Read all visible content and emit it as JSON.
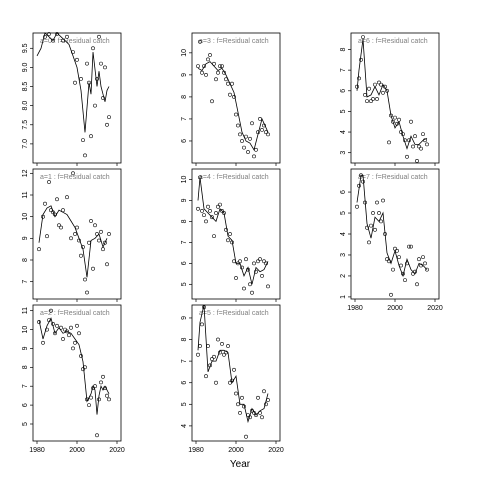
{
  "figure": {
    "xlabel": "Year"
  },
  "chart_data": {
    "type": "scatter",
    "xlim": [
      1978,
      2022
    ],
    "x_ticks": [
      1980,
      2000,
      2020
    ],
    "panels": [
      {
        "title": "a=0 : f=Residual catch",
        "ylim": [
          6.5,
          9.9
        ],
        "y_ticks": [
          7.0,
          7.5,
          8.0,
          8.5,
          9.0,
          9.5
        ],
        "y_tick_labels": [
          "7.0",
          "7.5",
          "8.0",
          "8.5",
          "9.0",
          "9.5"
        ],
        "points_x": [
          1984,
          1986,
          1988,
          1990,
          1993,
          1995,
          1998,
          1999,
          2000,
          2002,
          2003,
          2004,
          2005,
          2006,
          2007,
          2008,
          2009,
          2010,
          2011,
          2012,
          2013,
          2014,
          2015,
          2016
        ],
        "points_y": [
          9.8,
          9.9,
          9.7,
          9.95,
          9.7,
          9.8,
          9.4,
          8.6,
          9.2,
          8.7,
          7.1,
          6.7,
          9.1,
          8.6,
          7.2,
          9.5,
          8.0,
          8.7,
          9.8,
          9.1,
          8.2,
          9.0,
          7.5,
          7.7
        ],
        "line_x": [
          1980,
          1982,
          1984,
          1986,
          1988,
          1990,
          1992,
          1994,
          1996,
          1998,
          2000,
          2002,
          2004,
          2006,
          2007,
          2008,
          2010,
          2011,
          2012,
          2013,
          2014,
          2015,
          2016
        ],
        "line_y": [
          9.3,
          9.5,
          9.9,
          9.8,
          9.7,
          9.9,
          9.8,
          9.7,
          9.6,
          9.3,
          9.0,
          8.4,
          7.3,
          8.6,
          8.3,
          9.4,
          8.5,
          8.9,
          8.5,
          8.3,
          8.1,
          8.4,
          8.5
        ]
      },
      {
        "title": "a=1 : f=Residual catch",
        "ylim": [
          6.2,
          12.2
        ],
        "y_ticks": [
          7,
          8,
          9,
          10,
          11,
          12
        ],
        "y_tick_labels": [
          "7",
          "8",
          "9",
          "10",
          "11",
          "12"
        ],
        "points_x": [
          1981,
          1983,
          1984,
          1985,
          1986,
          1987,
          1988,
          1989,
          1990,
          1991,
          1992,
          1993,
          1995,
          1997,
          1998,
          1999,
          2000,
          2001,
          2002,
          2003,
          2004,
          2005,
          2006,
          2007,
          2008,
          2009,
          2010,
          2011,
          2012,
          2013,
          2014,
          2015,
          2016
        ],
        "points_y": [
          8.5,
          10.0,
          10.6,
          9.1,
          11.6,
          10.3,
          10.2,
          10.1,
          10.8,
          9.6,
          9.5,
          10.3,
          10.9,
          9.0,
          12.0,
          9.2,
          9.5,
          8.9,
          8.2,
          8.6,
          7.1,
          6.5,
          8.8,
          9.8,
          7.6,
          9.6,
          9.2,
          8.9,
          9.3,
          8.5,
          8.8,
          7.8,
          9.2
        ],
        "line_x": [
          1981,
          1983,
          1985,
          1987,
          1989,
          1991,
          1993,
          1995,
          1997,
          1999,
          2001,
          2003,
          2005,
          2007,
          2009,
          2011,
          2013,
          2015
        ],
        "line_y": [
          8.8,
          10.1,
          10.4,
          10.5,
          10.0,
          10.3,
          10.2,
          10.1,
          9.8,
          9.5,
          9.0,
          8.5,
          7.2,
          8.9,
          9.0,
          9.2,
          8.6,
          9.0
        ]
      },
      {
        "title": "a=2 : f=Residual catch",
        "ylim": [
          4.1,
          11.3
        ],
        "y_ticks": [
          5,
          6,
          7,
          8,
          9,
          10,
          11
        ],
        "y_tick_labels": [
          "5",
          "6",
          "7",
          "8",
          "9",
          "10",
          "11"
        ],
        "points_x": [
          1981,
          1983,
          1985,
          1986,
          1987,
          1988,
          1989,
          1990,
          1992,
          1993,
          1994,
          1995,
          1996,
          1997,
          1998,
          1999,
          2000,
          2001,
          2002,
          2003,
          2004,
          2005,
          2006,
          2007,
          2008,
          2009,
          2010,
          2011,
          2012,
          2013,
          2014,
          2015,
          2016
        ],
        "points_y": [
          10.4,
          9.3,
          10.0,
          10.5,
          11.0,
          10.3,
          9.8,
          10.2,
          10.1,
          9.5,
          10.0,
          9.9,
          9.7,
          10.1,
          9.0,
          9.3,
          10.2,
          9.8,
          8.6,
          7.9,
          8.0,
          6.3,
          6.0,
          6.4,
          6.9,
          7.0,
          4.4,
          6.3,
          7.2,
          7.5,
          6.9,
          6.5,
          6.3
        ],
        "line_x": [
          1981,
          1983,
          1985,
          1987,
          1989,
          1991,
          1993,
          1995,
          1997,
          1999,
          2001,
          2003,
          2005,
          2007,
          2008,
          2009,
          2010,
          2011,
          2012,
          2013,
          2014,
          2016
        ],
        "line_y": [
          10.5,
          9.5,
          10.2,
          10.6,
          9.8,
          10.1,
          9.8,
          9.9,
          9.8,
          9.5,
          9.2,
          8.3,
          6.2,
          6.6,
          7.0,
          6.8,
          5.5,
          6.5,
          7.0,
          6.8,
          7.0,
          6.6
        ]
      },
      {
        "title": "a=3 : f=Residual catch",
        "ylim": [
          5.0,
          10.9
        ],
        "y_ticks": [
          6,
          7,
          8,
          9,
          10
        ],
        "y_tick_labels": [
          "6",
          "7",
          "8",
          "9",
          "10"
        ],
        "points_x": [
          1981,
          1982,
          1983,
          1984,
          1985,
          1986,
          1987,
          1988,
          1989,
          1990,
          1991,
          1992,
          1993,
          1994,
          1995,
          1996,
          1997,
          1998,
          1999,
          2000,
          2001,
          2002,
          2003,
          2004,
          2005,
          2006,
          2007,
          2008,
          2009,
          2010,
          2011,
          2012,
          2013,
          2014,
          2015,
          2016
        ],
        "points_y": [
          9.4,
          10.5,
          9.1,
          9.4,
          9.0,
          9.7,
          9.9,
          7.8,
          9.5,
          8.8,
          9.1,
          9.4,
          9.4,
          9.1,
          8.8,
          8.6,
          8.1,
          8.6,
          8.0,
          7.2,
          6.7,
          6.3,
          6.0,
          5.7,
          6.2,
          5.5,
          6.1,
          6.8,
          5.3,
          5.6,
          6.4,
          7.0,
          6.5,
          6.7,
          6.4,
          6.3
        ],
        "line_x": [
          1981,
          1983,
          1985,
          1987,
          1989,
          1991,
          1993,
          1995,
          1997,
          1999,
          2001,
          2003,
          2005,
          2007,
          2009,
          2011,
          2013,
          2016
        ],
        "line_y": [
          9.3,
          9.2,
          9.5,
          9.6,
          9.4,
          9.2,
          9.3,
          9.0,
          8.6,
          8.2,
          7.3,
          6.4,
          6.0,
          5.9,
          5.6,
          6.3,
          7.0,
          6.4
        ]
      },
      {
        "title": "a=4 : f=Residual catch",
        "ylim": [
          4.3,
          10.5
        ],
        "y_ticks": [
          5,
          6,
          7,
          8,
          9,
          10
        ],
        "y_tick_labels": [
          "5",
          "6",
          "7",
          "8",
          "9",
          "10"
        ],
        "points_x": [
          1981,
          1982,
          1983,
          1984,
          1985,
          1986,
          1987,
          1988,
          1989,
          1990,
          1991,
          1992,
          1993,
          1994,
          1995,
          1996,
          1997,
          1998,
          1999,
          2000,
          2001,
          2002,
          2003,
          2004,
          2005,
          2006,
          2007,
          2008,
          2009,
          2010,
          2011,
          2012,
          2013,
          2014,
          2015,
          2016
        ],
        "points_y": [
          8.6,
          10.1,
          8.5,
          8.3,
          8.0,
          8.7,
          8.5,
          8.2,
          7.3,
          8.4,
          8.7,
          8.8,
          8.5,
          8.4,
          7.6,
          7.1,
          7.4,
          7.0,
          6.1,
          5.3,
          6.0,
          6.1,
          5.8,
          4.8,
          6.2,
          5.7,
          5.0,
          4.6,
          6.0,
          5.6,
          6.1,
          6.2,
          5.4,
          6.1,
          6.0,
          4.9
        ],
        "line_x": [
          1981,
          1982,
          1984,
          1986,
          1988,
          1990,
          1992,
          1994,
          1996,
          1998,
          2000,
          2002,
          2004,
          2006,
          2008,
          2010,
          2012,
          2014,
          2016
        ],
        "line_y": [
          9.0,
          10.1,
          8.6,
          8.4,
          8.2,
          8.0,
          8.6,
          8.4,
          7.3,
          7.1,
          6.0,
          6.0,
          5.4,
          5.8,
          5.0,
          5.8,
          5.6,
          5.7,
          6.1
        ]
      },
      {
        "title": "a=5 : f=Residual catch",
        "ylim": [
          3.3,
          9.6
        ],
        "y_ticks": [
          4,
          5,
          6,
          7,
          8,
          9
        ],
        "y_tick_labels": [
          "4",
          "5",
          "6",
          "7",
          "8",
          "9"
        ],
        "points_x": [
          1981,
          1982,
          1983,
          1984,
          1985,
          1986,
          1987,
          1988,
          1989,
          1990,
          1991,
          1992,
          1993,
          1994,
          1995,
          1996,
          1997,
          1998,
          1999,
          2000,
          2001,
          2002,
          2003,
          2004,
          2005,
          2006,
          2007,
          2008,
          2009,
          2010,
          2011,
          2012,
          2013,
          2014,
          2015,
          2016
        ],
        "points_y": [
          7.3,
          7.7,
          8.7,
          9.5,
          6.3,
          7.7,
          6.8,
          7.1,
          7.2,
          6.0,
          8.0,
          7.4,
          7.8,
          7.3,
          7.4,
          7.7,
          6.0,
          6.1,
          6.6,
          5.5,
          5.0,
          4.6,
          5.3,
          4.9,
          3.5,
          4.5,
          4.4,
          4.7,
          4.6,
          4.5,
          5.3,
          4.6,
          4.4,
          5.6,
          5.0,
          5.2
        ],
        "line_x": [
          1981,
          1982,
          1984,
          1986,
          1988,
          1990,
          1992,
          1994,
          1996,
          1998,
          2000,
          2002,
          2004,
          2006,
          2008,
          2010,
          2012,
          2014,
          2016
        ],
        "line_y": [
          7.5,
          8.8,
          9.6,
          6.5,
          7.0,
          7.0,
          7.5,
          7.5,
          7.4,
          6.0,
          6.3,
          5.0,
          5.0,
          4.2,
          4.8,
          4.5,
          4.7,
          4.8,
          5.5
        ]
      },
      {
        "title": "a=6 : f=Residual catch",
        "ylim": [
          2.5,
          8.8
        ],
        "y_ticks": [
          3,
          4,
          5,
          6,
          7,
          8
        ],
        "y_tick_labels": [
          "3",
          "4",
          "5",
          "6",
          "7",
          "8"
        ],
        "points_x": [
          1981,
          1982,
          1983,
          1984,
          1985,
          1986,
          1987,
          1988,
          1989,
          1990,
          1991,
          1992,
          1993,
          1994,
          1995,
          1996,
          1997,
          1998,
          1999,
          2000,
          2001,
          2002,
          2003,
          2004,
          2005,
          2006,
          2007,
          2008,
          2009,
          2010,
          2011,
          2012,
          2013,
          2014,
          2015,
          2016
        ],
        "points_y": [
          6.2,
          6.6,
          7.5,
          8.6,
          5.8,
          5.5,
          6.1,
          5.5,
          5.6,
          6.3,
          5.6,
          6.4,
          6.3,
          5.9,
          6.2,
          6.0,
          3.5,
          4.8,
          4.5,
          4.7,
          4.4,
          4.6,
          4.0,
          3.9,
          3.6,
          2.8,
          3.6,
          4.5,
          3.3,
          3.8,
          2.6,
          3.3,
          3.2,
          3.9,
          3.6,
          3.4
        ],
        "line_x": [
          1981,
          1982,
          1984,
          1986,
          1988,
          1990,
          1992,
          1994,
          1996,
          1998,
          2000,
          2002,
          2004,
          2006,
          2008,
          2010,
          2012,
          2014,
          2016
        ],
        "line_y": [
          6.0,
          7.0,
          8.5,
          5.7,
          5.8,
          6.2,
          5.8,
          6.3,
          6.0,
          4.8,
          4.2,
          4.5,
          3.8,
          3.2,
          3.8,
          3.4,
          3.4,
          3.6,
          3.7
        ]
      },
      {
        "title": "a=7 : f=Residual catch",
        "ylim": [
          0.9,
          7.1
        ],
        "y_ticks": [
          1,
          2,
          3,
          4,
          5,
          6
        ],
        "y_tick_labels": [
          "1",
          "2",
          "3",
          "4",
          "5",
          "6"
        ],
        "points_x": [
          1981,
          1982,
          1983,
          1984,
          1985,
          1986,
          1987,
          1988,
          1989,
          1990,
          1991,
          1992,
          1993,
          1994,
          1995,
          1996,
          1997,
          1998,
          1999,
          2000,
          2001,
          2002,
          2003,
          2004,
          2005,
          2006,
          2007,
          2008,
          2009,
          2010,
          2011,
          2012,
          2013,
          2014,
          2015,
          2016
        ],
        "points_y": [
          5.3,
          6.3,
          6.8,
          6.5,
          5.5,
          4.3,
          3.6,
          4.4,
          5.0,
          4.2,
          5.5,
          5.0,
          4.6,
          5.6,
          4.0,
          2.8,
          2.7,
          1.1,
          2.3,
          3.3,
          3.2,
          2.9,
          2.5,
          2.1,
          1.8,
          2.6,
          3.4,
          3.4,
          2.1,
          2.2,
          1.6,
          2.8,
          2.5,
          2.9,
          2.6,
          2.3
        ],
        "line_x": [
          1981,
          1983,
          1984,
          1986,
          1988,
          1990,
          1992,
          1994,
          1996,
          1998,
          2000,
          2002,
          2004,
          2006,
          2008,
          2010,
          2012,
          2014,
          2016
        ],
        "line_y": [
          5.5,
          6.8,
          6.8,
          4.5,
          3.8,
          4.8,
          4.6,
          5.0,
          3.1,
          2.6,
          3.2,
          2.5,
          2.0,
          2.8,
          2.3,
          2.1,
          2.6,
          2.5,
          2.3
        ]
      }
    ]
  }
}
